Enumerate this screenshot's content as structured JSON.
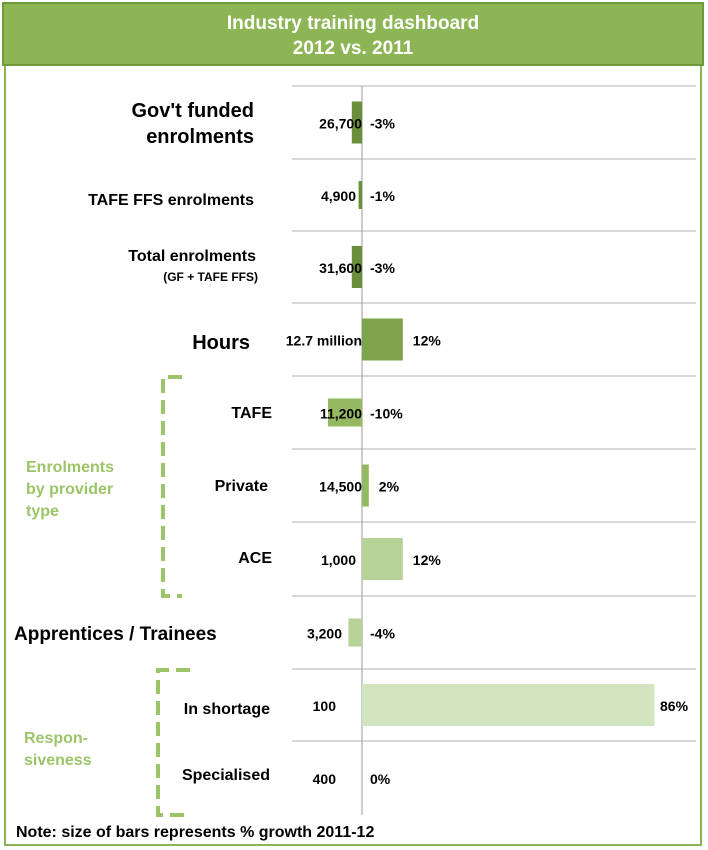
{
  "header": {
    "title_line1": "Industry training dashboard",
    "title_line2": "2012 vs. 2011"
  },
  "chart_data": {
    "type": "bar",
    "orientation": "horizontal",
    "rows": [
      {
        "label": "Gov't funded enrolments",
        "sublabel": "",
        "value_label": "26,700",
        "growth_pct": -3,
        "growth_label": "-3%",
        "color": "#6b8e3a"
      },
      {
        "label": "TAFE FFS enrolments",
        "sublabel": "",
        "value_label": "4,900",
        "growth_pct": -1,
        "growth_label": "-1%",
        "color": "#6b8e3a"
      },
      {
        "label": "Total enrolments",
        "sublabel": "(GF + TAFE FFS)",
        "value_label": "31,600",
        "growth_pct": -3,
        "growth_label": "-3%",
        "color": "#6b8e3a"
      },
      {
        "label": "Hours",
        "sublabel": "",
        "value_label": "12.7 million",
        "growth_pct": 12,
        "growth_label": "12%",
        "color": "#7ea34a"
      },
      {
        "label": "TAFE",
        "sublabel": "",
        "value_label": "11,200",
        "growth_pct": -10,
        "growth_label": "-10%",
        "color": "#95b960"
      },
      {
        "label": "Private",
        "sublabel": "",
        "value_label": "14,500",
        "growth_pct": 2,
        "growth_label": "2%",
        "color": "#95b960"
      },
      {
        "label": "ACE",
        "sublabel": "",
        "value_label": "1,000",
        "growth_pct": 12,
        "growth_label": "12%",
        "color": "#b7d296"
      },
      {
        "label": "Apprentices / Trainees",
        "sublabel": "",
        "value_label": "3,200",
        "growth_pct": -4,
        "growth_label": "-4%",
        "color": "#b7d296"
      },
      {
        "label": "In shortage",
        "sublabel": "",
        "value_label": "100",
        "growth_pct": 86,
        "growth_label": "86%",
        "color": "#d3e4c1"
      },
      {
        "label": "Specialised",
        "sublabel": "",
        "value_label": "400",
        "growth_pct": 0,
        "growth_label": "0%",
        "color": "#d3e4c1"
      }
    ],
    "groups": [
      {
        "label_lines": [
          "Enrolments",
          "by provider",
          "type"
        ]
      },
      {
        "label_lines": [
          "Respon-",
          "siveness"
        ]
      }
    ],
    "note": "Note: size of bars represents % growth 2011-12"
  }
}
